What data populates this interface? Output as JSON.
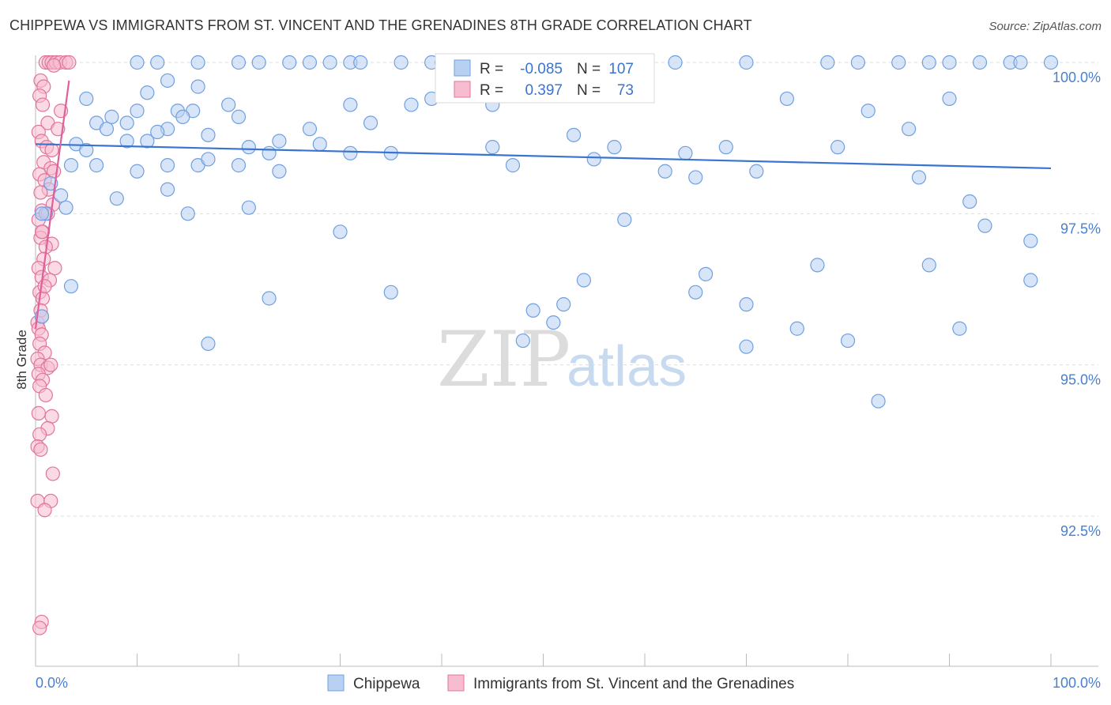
{
  "title": "CHIPPEWA VS IMMIGRANTS FROM ST. VINCENT AND THE GRENADINES 8TH GRADE CORRELATION CHART",
  "source": "Source: ZipAtlas.com",
  "watermark": {
    "zip": "ZIP",
    "atlas": "atlas"
  },
  "chart_data": {
    "type": "scatter",
    "title": "CHIPPEWA VS IMMIGRANTS FROM ST. VINCENT AND THE GRENADINES 8TH GRADE CORRELATION CHART",
    "xlabel": "",
    "ylabel": "8th Grade",
    "xlim": [
      0,
      100
    ],
    "ylim": [
      90.5,
      100.4
    ],
    "x_tick_labels": [
      "0.0%",
      "100.0%"
    ],
    "y_ticks": [
      {
        "value": 100.0,
        "label": "100.0%"
      },
      {
        "value": 97.5,
        "label": "97.5%"
      },
      {
        "value": 95.0,
        "label": "95.0%"
      },
      {
        "value": 92.5,
        "label": "92.5%"
      }
    ],
    "grid": "horizontal dashed",
    "legend_position": "top-center",
    "series": [
      {
        "name": "Chippewa",
        "color": "#6fa0e0",
        "fill": "#b8d0f2",
        "r": "-0.085",
        "n": "107",
        "trend": {
          "x": [
            0,
            100
          ],
          "y": [
            98.65,
            98.25
          ]
        },
        "points": [
          [
            10,
            100
          ],
          [
            12,
            100
          ],
          [
            16,
            100
          ],
          [
            20,
            100
          ],
          [
            22,
            100
          ],
          [
            25,
            100
          ],
          [
            27,
            100
          ],
          [
            29,
            100
          ],
          [
            31,
            100
          ],
          [
            32,
            100
          ],
          [
            36,
            100
          ],
          [
            39,
            100
          ],
          [
            40,
            100
          ],
          [
            45,
            100
          ],
          [
            52,
            100
          ],
          [
            56,
            100
          ],
          [
            63,
            100
          ],
          [
            70,
            100
          ],
          [
            78,
            100
          ],
          [
            81,
            100
          ],
          [
            85,
            100
          ],
          [
            88,
            100
          ],
          [
            90,
            100
          ],
          [
            93,
            100
          ],
          [
            96,
            100
          ],
          [
            97,
            100
          ],
          [
            100,
            100
          ],
          [
            13,
            99.7
          ],
          [
            16,
            99.6
          ],
          [
            11,
            99.5
          ],
          [
            5,
            99.4
          ],
          [
            31,
            99.3
          ],
          [
            37,
            99.3
          ],
          [
            10,
            99.2
          ],
          [
            14,
            99.2
          ],
          [
            15.5,
            99.2
          ],
          [
            19,
            99.3
          ],
          [
            7.5,
            99.1
          ],
          [
            9,
            99.0
          ],
          [
            13,
            98.9
          ],
          [
            14.5,
            99.1
          ],
          [
            6,
            99.0
          ],
          [
            20,
            99.1
          ],
          [
            27,
            98.9
          ],
          [
            33,
            99.0
          ],
          [
            39,
            99.4
          ],
          [
            45,
            99.3
          ],
          [
            74,
            99.4
          ],
          [
            82,
            99.2
          ],
          [
            90,
            99.4
          ],
          [
            7,
            98.9
          ],
          [
            11,
            98.7
          ],
          [
            12,
            98.85
          ],
          [
            9,
            98.7
          ],
          [
            17,
            98.8
          ],
          [
            21,
            98.6
          ],
          [
            23,
            98.5
          ],
          [
            24,
            98.7
          ],
          [
            28,
            98.65
          ],
          [
            31,
            98.5
          ],
          [
            35,
            98.5
          ],
          [
            45,
            98.6
          ],
          [
            53,
            98.8
          ],
          [
            57,
            98.6
          ],
          [
            64,
            98.5
          ],
          [
            68,
            98.6
          ],
          [
            79,
            98.6
          ],
          [
            86,
            98.9
          ],
          [
            4,
            98.65
          ],
          [
            5,
            98.55
          ],
          [
            3.5,
            98.3
          ],
          [
            6,
            98.3
          ],
          [
            10,
            98.2
          ],
          [
            13,
            98.3
          ],
          [
            16,
            98.3
          ],
          [
            17,
            98.4
          ],
          [
            20,
            98.3
          ],
          [
            24,
            98.2
          ],
          [
            47,
            98.3
          ],
          [
            55,
            98.4
          ],
          [
            62,
            98.2
          ],
          [
            65,
            98.1
          ],
          [
            71,
            98.2
          ],
          [
            1.5,
            98.0
          ],
          [
            2.5,
            97.8
          ],
          [
            3,
            97.6
          ],
          [
            1,
            97.5
          ],
          [
            8,
            97.75
          ],
          [
            13,
            97.9
          ],
          [
            15,
            97.5
          ],
          [
            21,
            97.6
          ],
          [
            30,
            97.2
          ],
          [
            58,
            97.4
          ],
          [
            87,
            98.1
          ],
          [
            92,
            97.7
          ],
          [
            93.5,
            97.3
          ],
          [
            98,
            97.05
          ],
          [
            3.5,
            96.3
          ],
          [
            23,
            96.1
          ],
          [
            35,
            96.2
          ],
          [
            49,
            95.9
          ],
          [
            52,
            96.0
          ],
          [
            51,
            95.7
          ],
          [
            54,
            96.4
          ],
          [
            65,
            96.2
          ],
          [
            66,
            96.5
          ],
          [
            70,
            96.0
          ],
          [
            77,
            96.65
          ],
          [
            88,
            96.65
          ],
          [
            98,
            96.4
          ],
          [
            91,
            95.6
          ],
          [
            75,
            95.6
          ],
          [
            80,
            95.4
          ],
          [
            17,
            95.35
          ],
          [
            48,
            95.4
          ],
          [
            70,
            95.3
          ],
          [
            83,
            94.4
          ],
          [
            0,
            95.8
          ],
          [
            0,
            97.5
          ]
        ]
      },
      {
        "name": "Immigrants from St. Vincent and the Grenadines",
        "color": "#e0759c",
        "fill": "#f7bcd0",
        "r": "0.397",
        "n": "73",
        "trend": {
          "x": [
            0,
            3.3
          ],
          "y": [
            95.6,
            99.7
          ]
        },
        "points": [
          [
            1,
            100
          ],
          [
            1.3,
            100
          ],
          [
            1.6,
            100
          ],
          [
            2,
            100
          ],
          [
            2.4,
            100
          ],
          [
            3,
            100
          ],
          [
            3.3,
            100
          ],
          [
            1.8,
            99.95
          ],
          [
            0.5,
            99.7
          ],
          [
            0.8,
            99.6
          ],
          [
            0.4,
            99.45
          ],
          [
            0.7,
            99.3
          ],
          [
            1.2,
            99.0
          ],
          [
            2.5,
            99.2
          ],
          [
            0.3,
            98.85
          ],
          [
            0.6,
            98.7
          ],
          [
            1.1,
            98.6
          ],
          [
            1.6,
            98.55
          ],
          [
            0.8,
            98.35
          ],
          [
            1.5,
            98.25
          ],
          [
            0.4,
            98.15
          ],
          [
            1.8,
            98.2
          ],
          [
            0.9,
            98.05
          ],
          [
            1.3,
            97.9
          ],
          [
            0.5,
            97.85
          ],
          [
            1.7,
            97.65
          ],
          [
            0.6,
            97.55
          ],
          [
            0.3,
            97.4
          ],
          [
            1.2,
            97.5
          ],
          [
            0.7,
            97.2
          ],
          [
            0.5,
            97.1
          ],
          [
            1.6,
            97.0
          ],
          [
            1.0,
            96.95
          ],
          [
            0.8,
            96.75
          ],
          [
            0.3,
            96.6
          ],
          [
            1.9,
            96.6
          ],
          [
            0.6,
            96.45
          ],
          [
            1.4,
            96.4
          ],
          [
            0.4,
            96.2
          ],
          [
            0.7,
            96.1
          ],
          [
            0.5,
            95.9
          ],
          [
            0.2,
            95.7
          ],
          [
            0.3,
            95.6
          ],
          [
            0.6,
            95.5
          ],
          [
            0.4,
            95.35
          ],
          [
            0.9,
            95.2
          ],
          [
            0.2,
            95.1
          ],
          [
            0.5,
            95.0
          ],
          [
            1.2,
            94.95
          ],
          [
            0.3,
            94.85
          ],
          [
            0.7,
            94.75
          ],
          [
            0.4,
            94.65
          ],
          [
            1.0,
            94.5
          ],
          [
            0.3,
            94.2
          ],
          [
            1.6,
            94.15
          ],
          [
            1.2,
            93.95
          ],
          [
            0.4,
            93.85
          ],
          [
            0.2,
            93.65
          ],
          [
            0.5,
            93.6
          ],
          [
            1.7,
            93.2
          ],
          [
            0.2,
            92.75
          ],
          [
            1.5,
            92.75
          ],
          [
            0.9,
            92.6
          ],
          [
            0.6,
            90.75
          ],
          [
            0.4,
            90.65
          ],
          [
            0.0,
            95.8
          ],
          [
            0.0,
            97.2
          ],
          [
            2.2,
            98.9
          ],
          [
            0.9,
            96.3
          ],
          [
            1.5,
            95.0
          ]
        ]
      }
    ]
  },
  "legend": {
    "r_label": "R =",
    "n_label": "N ="
  }
}
